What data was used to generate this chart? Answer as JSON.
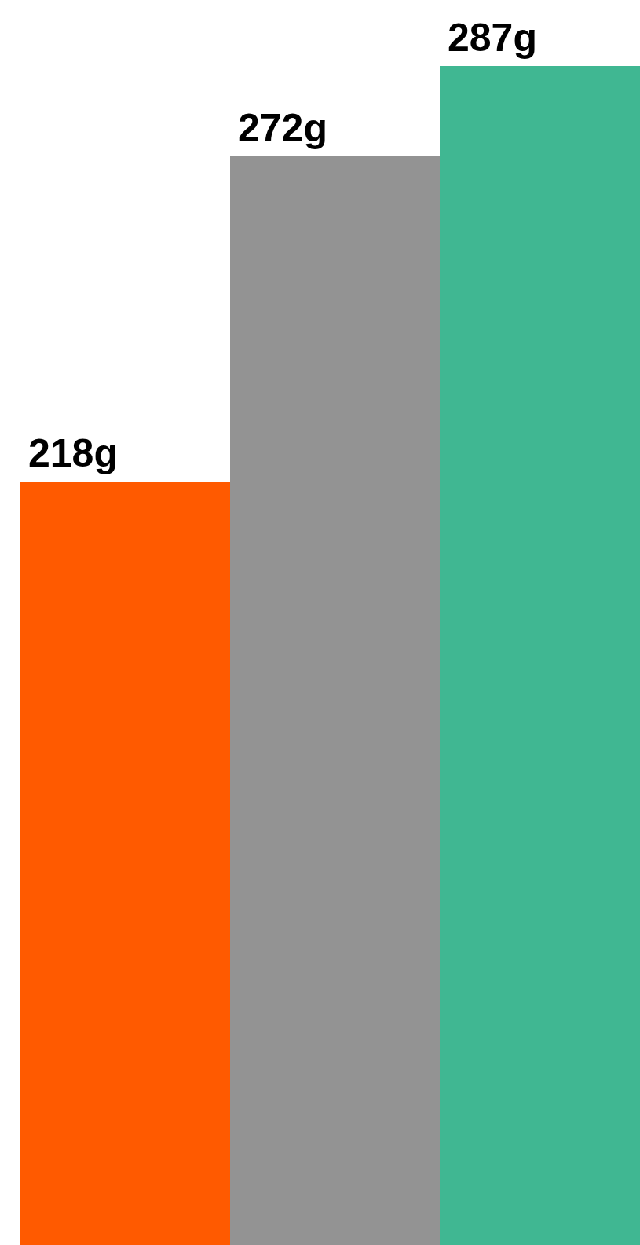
{
  "chart_data": {
    "type": "bar",
    "categories": [
      null,
      null,
      null
    ],
    "values": [
      218,
      272,
      287
    ],
    "value_labels": [
      "218g",
      "272g",
      "287g"
    ],
    "colors": [
      "#ff5a00",
      "#939393",
      "#40b792"
    ],
    "ylim": [
      91,
      298
    ],
    "grid": false,
    "legend": false
  }
}
